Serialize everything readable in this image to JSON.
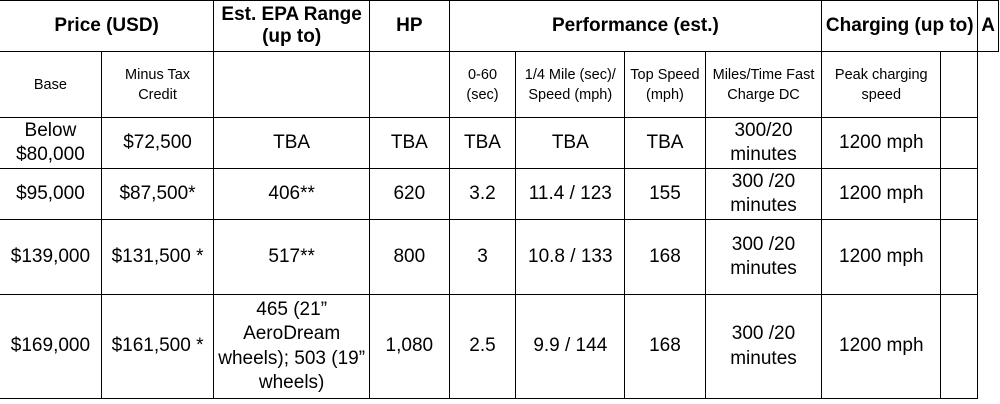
{
  "groups": {
    "price": "Price (USD)",
    "range": "Est. EPA Range (up to)",
    "hp": "HP",
    "performance": "Performance (est.)",
    "charging": "Charging (up to)",
    "truncated": "A"
  },
  "subheaders": {
    "base": "Base",
    "minus_tax": "Minus Tax Credit",
    "zero_sixty": "0-60 (sec)",
    "quarter_mile": "1/4 Mile (sec)/ Speed (mph)",
    "top_speed": "Top Speed (mph)",
    "miles_time": "Miles/Time Fast Charge DC",
    "peak_speed": "Peak charging speed"
  },
  "rows": [
    {
      "base": "Below $80,000",
      "minus_tax": "$72,500",
      "range": "TBA",
      "hp": "TBA",
      "zero_sixty": "TBA",
      "quarter_mile": "TBA",
      "top_speed": "TBA",
      "miles_time": "300/20 minutes",
      "peak_speed": "1200 mph"
    },
    {
      "base": "$95,000",
      "minus_tax": "$87,500*",
      "range": "406**",
      "hp": "620",
      "zero_sixty": "3.2",
      "quarter_mile": "11.4 / 123",
      "top_speed": "155",
      "miles_time": "300 /20 minutes",
      "peak_speed": "1200 mph"
    },
    {
      "base": "$139,000",
      "minus_tax": "$131,500 *",
      "range": "517**",
      "hp": "800",
      "zero_sixty": "3",
      "quarter_mile": "10.8 / 133",
      "top_speed": "168",
      "miles_time": "300 /20 minutes",
      "peak_speed": "1200 mph"
    },
    {
      "base": "$169,000",
      "minus_tax": "$161,500 *",
      "range": "465 (21” AeroDream wheels); 503 (19” wheels)",
      "hp": "1,080",
      "zero_sixty": "2.5",
      "quarter_mile": "9.9 / 144",
      "top_speed": "168",
      "miles_time": "300 /20 minutes",
      "peak_speed": "1200 mph"
    }
  ]
}
